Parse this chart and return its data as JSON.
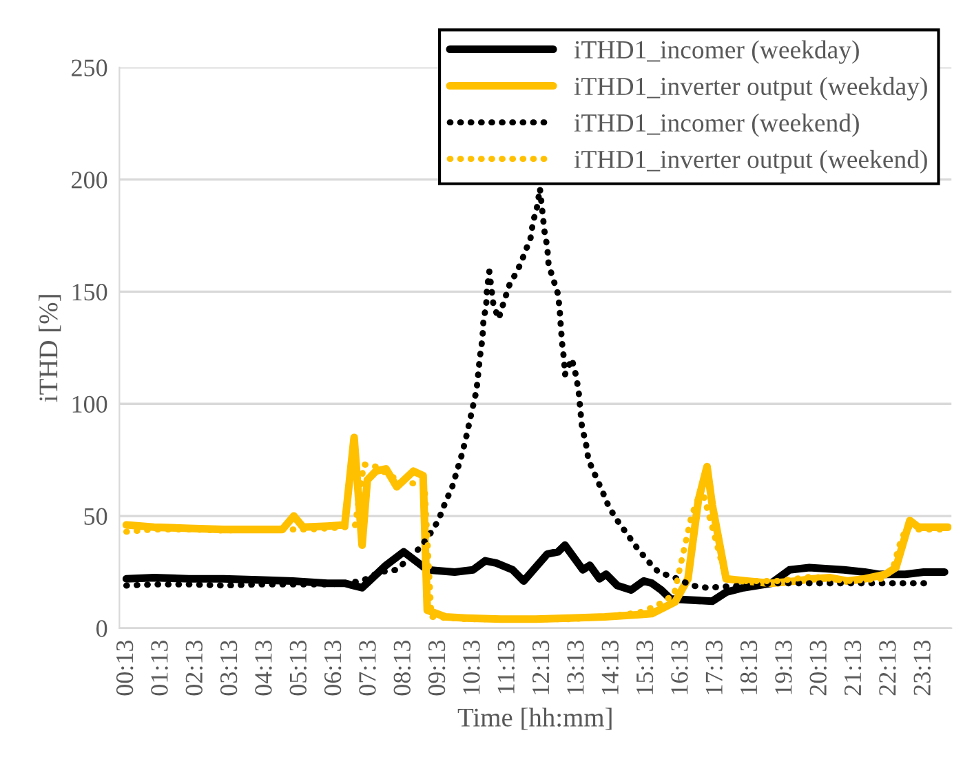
{
  "chart_data": {
    "type": "line",
    "xlabel": "Time [hh:mm]",
    "ylabel": "iTHD [%]",
    "xlim": [
      0,
      24
    ],
    "ylim": [
      0,
      250
    ],
    "yticks": [
      0,
      50,
      100,
      150,
      200,
      250
    ],
    "xticks": [
      {
        "value": 0.2167,
        "label": "00:13"
      },
      {
        "value": 1.2167,
        "label": "01:13"
      },
      {
        "value": 2.2167,
        "label": "02:13"
      },
      {
        "value": 3.2167,
        "label": "03:13"
      },
      {
        "value": 4.2167,
        "label": "04:13"
      },
      {
        "value": 5.2167,
        "label": "05:13"
      },
      {
        "value": 6.2167,
        "label": "06:13"
      },
      {
        "value": 7.2167,
        "label": "07:13"
      },
      {
        "value": 8.2167,
        "label": "08:13"
      },
      {
        "value": 9.2167,
        "label": "09:13"
      },
      {
        "value": 10.2167,
        "label": "10:13"
      },
      {
        "value": 11.2167,
        "label": "11:13"
      },
      {
        "value": 12.2167,
        "label": "12:13"
      },
      {
        "value": 13.2167,
        "label": "13:13"
      },
      {
        "value": 14.2167,
        "label": "14:13"
      },
      {
        "value": 15.2167,
        "label": "15:13"
      },
      {
        "value": 16.2167,
        "label": "16:13"
      },
      {
        "value": 17.2167,
        "label": "17:13"
      },
      {
        "value": 18.2167,
        "label": "18:13"
      },
      {
        "value": 19.2167,
        "label": "19:13"
      },
      {
        "value": 20.2167,
        "label": "20:13"
      },
      {
        "value": 21.2167,
        "label": "21:13"
      },
      {
        "value": 22.2167,
        "label": "22:13"
      },
      {
        "value": 23.2167,
        "label": "23:13"
      }
    ],
    "grid": "y",
    "legend": "top right",
    "series": [
      {
        "name": "iTHD1_incomer (weekday)",
        "color": "#000000",
        "line_style": "solid",
        "x": [
          0.2,
          1,
          2,
          3,
          4,
          5,
          6,
          6.5,
          7,
          7.69,
          8.2,
          8.88,
          9.67,
          10.2,
          10.55,
          10.87,
          11.34,
          11.66,
          12.34,
          12.65,
          12.85,
          13.37,
          13.57,
          13.85,
          14.04,
          14.36,
          14.76,
          15.12,
          15.36,
          15.63,
          15.9,
          17.1,
          17.5,
          18.0,
          18.8,
          19.33,
          19.9,
          20.9,
          21.5,
          21.9,
          22.67,
          23.2,
          23.8
        ],
        "values": [
          22,
          22.5,
          22,
          22,
          21.5,
          21,
          20,
          20,
          18,
          28,
          34,
          26,
          25,
          26,
          30,
          29,
          26,
          21,
          33,
          34,
          37,
          26,
          28,
          22,
          24,
          19,
          17,
          21,
          20,
          17,
          13,
          12,
          16,
          18,
          20,
          26,
          27,
          26,
          25,
          24,
          24,
          25,
          25
        ]
      },
      {
        "name": "iTHD1_inverter output (weekday)",
        "color": "#ffc000",
        "line_style": "solid",
        "x": [
          0.2,
          1,
          2,
          3,
          4,
          4.7,
          5.03,
          5.3,
          6,
          6.5,
          6.77,
          7.0,
          7.15,
          7.4,
          7.69,
          8.0,
          8.48,
          8.76,
          8.88,
          9.4,
          10,
          11,
          12,
          13,
          14,
          15,
          15.36,
          16.03,
          16.4,
          16.7,
          16.95,
          17.1,
          17.5,
          18.1,
          18.8,
          19.5,
          20,
          20.5,
          21,
          21.5,
          22.1,
          22.4,
          22.8,
          23.05,
          23.5,
          23.9
        ],
        "values": [
          46,
          45,
          44.5,
          44,
          44,
          44,
          50,
          45,
          45.5,
          46,
          85,
          37,
          66,
          70,
          71,
          63,
          70,
          68,
          8,
          5,
          4.5,
          4,
          4,
          4.5,
          5,
          6,
          6.5,
          11.7,
          22,
          57,
          72,
          55,
          22,
          21,
          20,
          21,
          22,
          22.5,
          21,
          22,
          24,
          27,
          48,
          45,
          45,
          45
        ]
      },
      {
        "name": "iTHD1_incomer (weekend)",
        "color": "#000000",
        "line_style": "dotted",
        "x": [
          0.2,
          1,
          2,
          3,
          4,
          5,
          6,
          6.5,
          7,
          7.5,
          8.0,
          8.68,
          8.96,
          9.2,
          9.4,
          9.6,
          9.87,
          10.0,
          10.2,
          10.3,
          10.4,
          10.47,
          10.5,
          10.58,
          10.6,
          10.67,
          10.79,
          10.94,
          11.1,
          11.25,
          11.5,
          11.66,
          11.86,
          11.93,
          12.05,
          12.13,
          12.26,
          12.34,
          12.38,
          12.65,
          12.7,
          12.73,
          12.77,
          12.83,
          12.85,
          13.05,
          13.18,
          13.25,
          13.34,
          13.46,
          13.53,
          13.73,
          13.93,
          14.12,
          14.36,
          14.64,
          14.92,
          15.24,
          15.55,
          16.1,
          16.5,
          16.95,
          18,
          19,
          20,
          21,
          22,
          23,
          23.3
        ],
        "values": [
          19,
          19.5,
          19.5,
          19,
          19.5,
          19.5,
          19.5,
          20,
          21,
          25,
          26,
          36,
          42,
          48,
          56,
          63,
          77,
          85,
          99,
          106,
          121,
          129,
          137,
          144,
          151,
          159,
          144,
          138,
          146,
          153,
          160,
          166,
          174,
          181,
          188,
          196,
          177,
          170,
          162,
          149,
          142,
          135,
          127,
          119,
          113,
          120,
          112,
          105,
          90,
          82,
          75,
          68,
          61,
          54,
          48,
          42,
          36,
          30,
          25,
          22,
          19,
          18,
          19,
          20,
          20,
          20,
          20,
          20,
          20
        ]
      },
      {
        "name": "iTHD1_inverter output (weekend)",
        "color": "#ffc000",
        "line_style": "dotted",
        "x": [
          0.2,
          1,
          2,
          3,
          4,
          5,
          5.5,
          6.5,
          6.8,
          7.05,
          7.4,
          7.8,
          8.2,
          8.8,
          9,
          10,
          11,
          12,
          13,
          14,
          15,
          15.5,
          16,
          16.5,
          16.8,
          17.1,
          17.5,
          18,
          19,
          20,
          21,
          22,
          22.3,
          22.5,
          22.7,
          23,
          23.9
        ],
        "values": [
          43,
          44,
          44,
          43.5,
          44,
          44,
          44,
          45,
          46,
          73,
          72,
          68,
          65,
          64,
          5,
          4,
          4,
          4,
          4,
          5,
          7,
          10,
          15,
          50,
          62,
          45,
          22,
          21,
          21,
          23,
          21,
          22,
          26,
          37,
          45,
          44,
          44
        ]
      }
    ]
  }
}
